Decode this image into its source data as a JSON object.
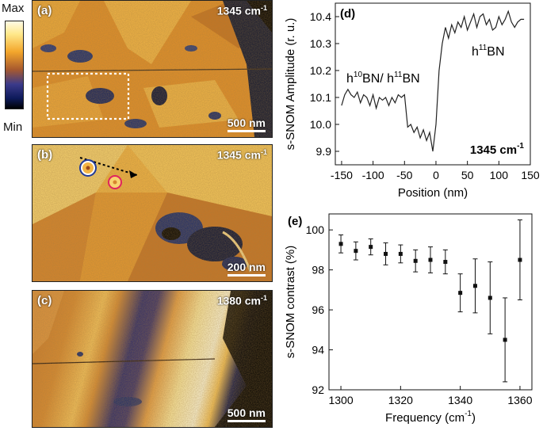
{
  "colorbar": {
    "max_label": "Max",
    "min_label": "Min"
  },
  "panels": [
    {
      "tag": "(a)",
      "wavenumber": "1345",
      "unit": "cm",
      "exp": "-1",
      "scale": "500 nm"
    },
    {
      "tag": "(b)",
      "wavenumber": "1345",
      "unit": "cm",
      "exp": "-1",
      "scale": "200 nm"
    },
    {
      "tag": "(c)",
      "wavenumber": "1380",
      "unit": "cm",
      "exp": "-1",
      "scale": "500 nm"
    }
  ],
  "colors": {
    "ring_blue": "#1f3a9a",
    "ring_red": "#e0245e",
    "hot": "#ffe98a",
    "warm": "#e89a2c",
    "cool": "#0b1840"
  },
  "chart_data": [
    {
      "type": "line",
      "panel_tag": "(d)",
      "xlabel": "Position (nm)",
      "ylabel": "s-SNOM Amplitude (r. u.)",
      "xlim": [
        -160,
        150
      ],
      "ylim": [
        9.85,
        10.45
      ],
      "xticks": [
        -150,
        -100,
        -50,
        0,
        50,
        100,
        150
      ],
      "yticks": [
        9.9,
        10.0,
        10.1,
        10.2,
        10.3,
        10.4
      ],
      "ytick_labels": [
        "9.9",
        "10.0",
        "10.1",
        "10.2",
        "10.3",
        "10.4"
      ],
      "annotations": {
        "left_a": "h",
        "left_b": "10",
        "left_c": "BN/ h",
        "left_d": "11",
        "left_e": "BN",
        "right_a": "h",
        "right_b": "11",
        "right_c": "BN",
        "corner": "1345 cm",
        "corner_exp": "-1"
      },
      "x": [
        -150,
        -145,
        -140,
        -135,
        -130,
        -125,
        -120,
        -115,
        -110,
        -105,
        -100,
        -95,
        -90,
        -85,
        -80,
        -75,
        -70,
        -65,
        -60,
        -55,
        -50,
        -45,
        -40,
        -35,
        -30,
        -25,
        -20,
        -15,
        -10,
        -5,
        0,
        5,
        10,
        15,
        20,
        25,
        30,
        35,
        40,
        45,
        50,
        55,
        60,
        65,
        70,
        75,
        80,
        85,
        90,
        95,
        100,
        105,
        110,
        115,
        120,
        125,
        130,
        135,
        140
      ],
      "y": [
        10.07,
        10.11,
        10.13,
        10.11,
        10.1,
        10.12,
        10.08,
        10.11,
        10.1,
        10.07,
        10.11,
        10.06,
        10.1,
        10.09,
        10.1,
        10.07,
        10.1,
        10.08,
        10.11,
        10.1,
        10.11,
        9.99,
        10.0,
        9.97,
        9.99,
        9.95,
        9.98,
        9.94,
        9.97,
        9.9,
        10.0,
        10.2,
        10.3,
        10.36,
        10.32,
        10.37,
        10.34,
        10.38,
        10.36,
        10.4,
        10.35,
        10.38,
        10.41,
        10.36,
        10.4,
        10.41,
        10.37,
        10.39,
        10.35,
        10.36,
        10.4,
        10.37,
        10.39,
        10.42,
        10.38,
        10.36,
        10.38,
        10.39,
        10.39
      ]
    },
    {
      "type": "scatter",
      "panel_tag": "(e)",
      "xlabel": "Frequency (cm",
      "xlabel_exp": "-1",
      "xlabel_end": ")",
      "ylabel": "s-SNOM contrast (%)",
      "xlim": [
        1296,
        1364
      ],
      "ylim": [
        92,
        100.8
      ],
      "xticks": [
        1300,
        1320,
        1340,
        1360
      ],
      "yticks": [
        92,
        94,
        96,
        98,
        100
      ],
      "x": [
        1300,
        1305,
        1310,
        1315,
        1320,
        1325,
        1330,
        1335,
        1340,
        1345,
        1350,
        1355,
        1360
      ],
      "y": [
        99.3,
        98.95,
        99.15,
        98.8,
        98.8,
        98.45,
        98.5,
        98.4,
        96.85,
        97.2,
        96.6,
        94.5,
        98.5
      ],
      "err": [
        0.45,
        0.45,
        0.4,
        0.55,
        0.45,
        0.55,
        0.65,
        0.6,
        0.95,
        1.35,
        1.8,
        2.1,
        2.0
      ]
    }
  ]
}
